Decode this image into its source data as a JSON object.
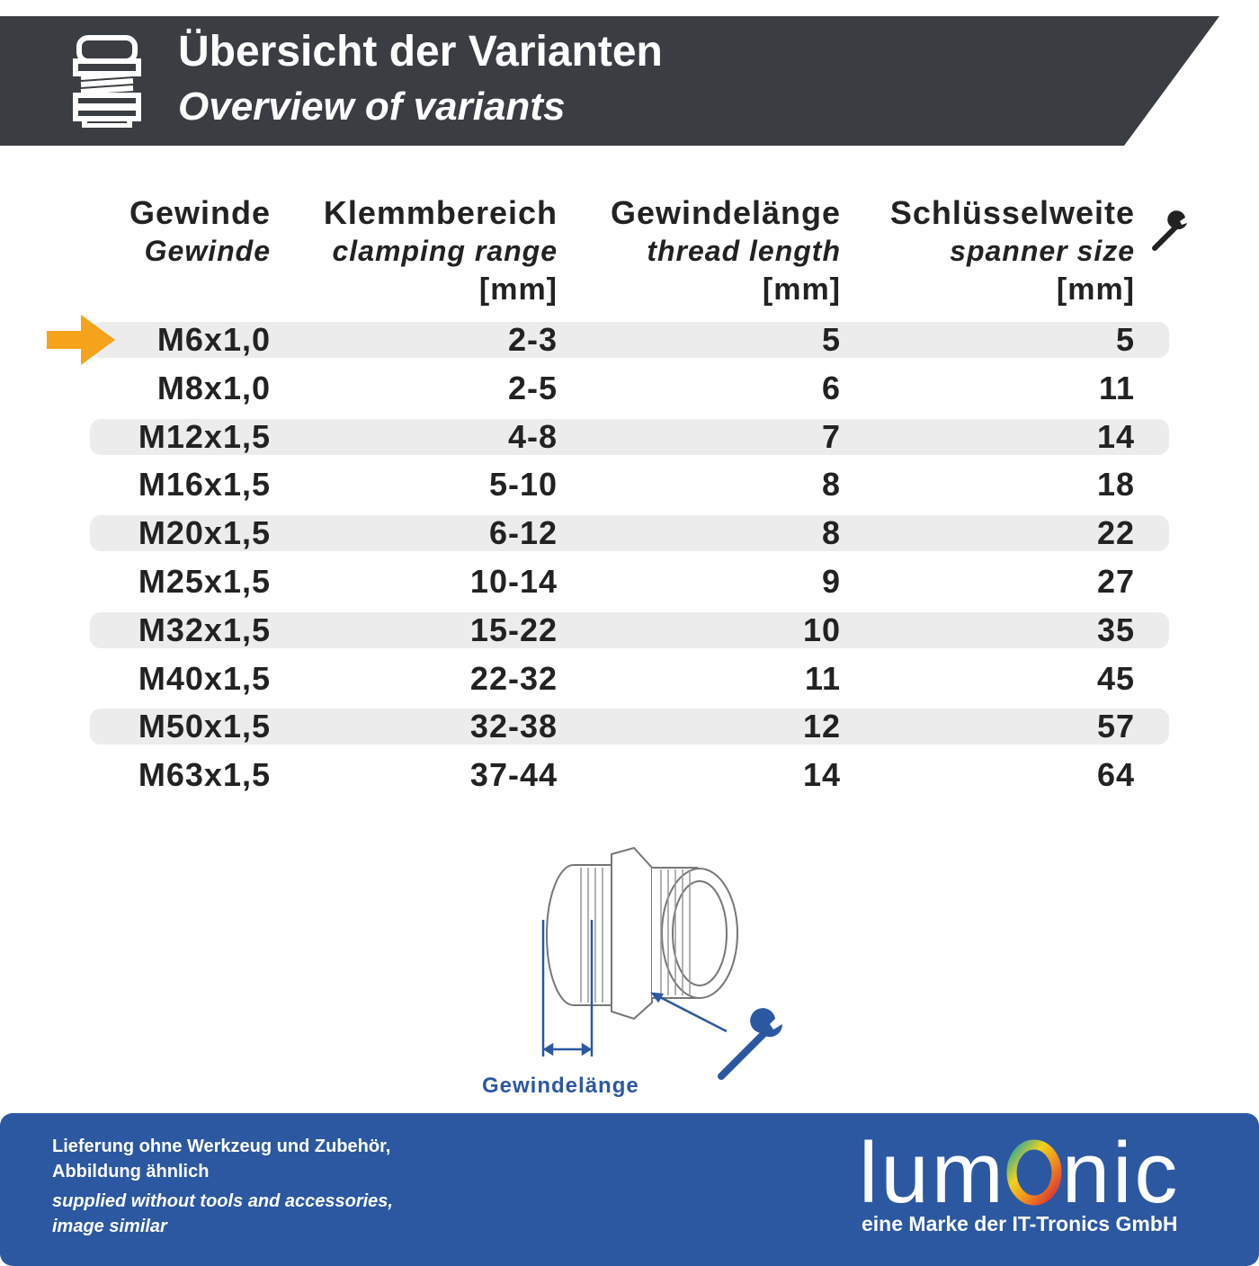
{
  "header": {
    "title": "Übersicht der Varianten",
    "subtitle": "Overview of variants",
    "icon": "cable-gland-icon"
  },
  "table": {
    "columns": [
      {
        "label": "Gewinde",
        "sublabel": "Gewinde",
        "unit": ""
      },
      {
        "label": "Klemmbereich",
        "sublabel": "clamping range",
        "unit": "[mm]"
      },
      {
        "label": "Gewindelänge",
        "sublabel": "thread length",
        "unit": "[mm]"
      },
      {
        "label": "Schlüsselweite",
        "sublabel": "spanner size",
        "unit": "[mm]",
        "icon": "wrench-icon"
      }
    ],
    "rows": [
      [
        "M6x1,0",
        "2-3",
        "5",
        "5"
      ],
      [
        "M8x1,0",
        "2-5",
        "6",
        "11"
      ],
      [
        "M12x1,5",
        "4-8",
        "7",
        "14"
      ],
      [
        "M16x1,5",
        "5-10",
        "8",
        "18"
      ],
      [
        "M20x1,5",
        "6-12",
        "8",
        "22"
      ],
      [
        "M25x1,5",
        "10-14",
        "9",
        "27"
      ],
      [
        "M32x1,5",
        "15-22",
        "10",
        "35"
      ],
      [
        "M40x1,5",
        "22-32",
        "11",
        "45"
      ],
      [
        "M50x1,5",
        "32-38",
        "12",
        "57"
      ],
      [
        "M63x1,5",
        "37-44",
        "14",
        "64"
      ]
    ],
    "highlighted_row": 0,
    "highlight_color": "#f5a31a"
  },
  "diagram": {
    "label": "Gewindelänge",
    "accent": "#2c58a2"
  },
  "footer": {
    "line1": "Lieferung ohne Werkzeug und Zubehör,",
    "line2": "Abbildung ähnlich",
    "line3": "supplied without tools and accessories,",
    "line4": "image similar",
    "brand": "lumOnic",
    "brand_sub": "eine Marke der IT-Tronics GmbH",
    "color": "#2c58a2"
  }
}
